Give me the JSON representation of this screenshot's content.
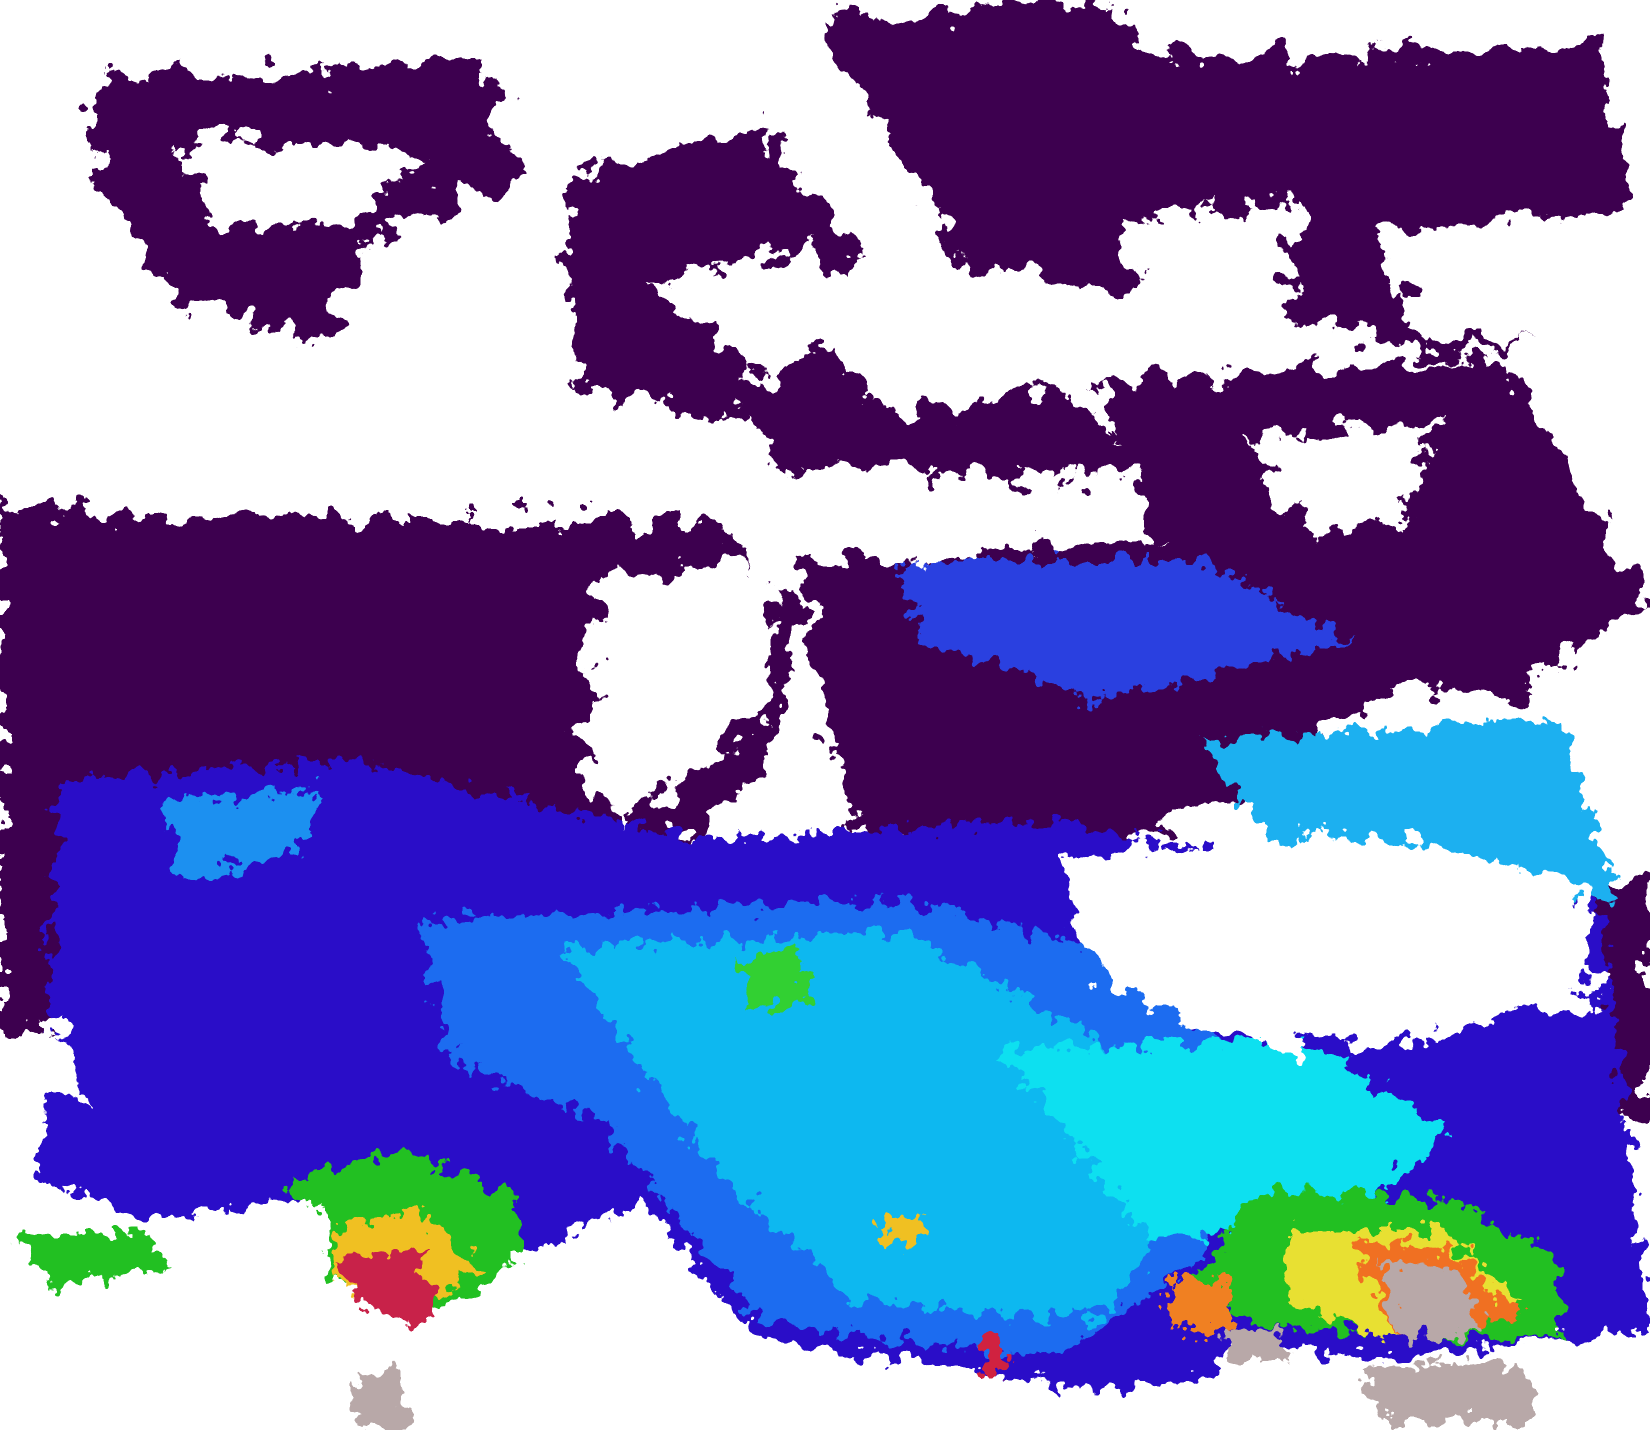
{
  "image": {
    "kind": "satellite ocean-colour composite",
    "colors": {
      "cloud_or_land": "#ffffff",
      "low_value": "#3e0050",
      "deep_blue": "#2a10c8",
      "blue": "#1a5cf0",
      "cyan": "#10d8f0",
      "green": "#20d020",
      "yellow": "#f0e020",
      "orange": "#f08020",
      "red": "#d02040",
      "land_gray": "#b8a8a8"
    }
  }
}
